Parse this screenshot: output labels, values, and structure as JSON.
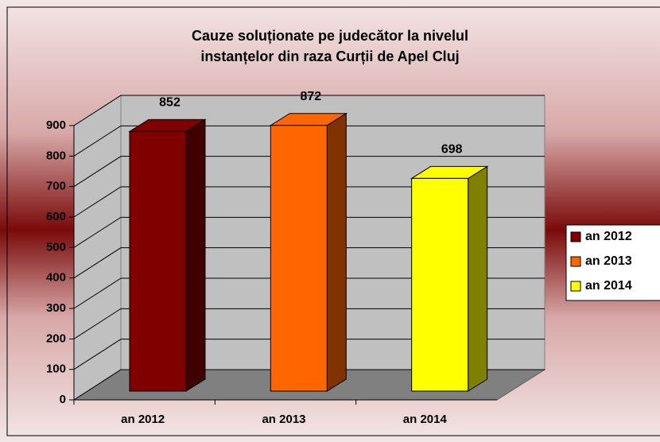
{
  "chart_data": {
    "type": "bar3d",
    "title": [
      "Cauze soluționate pe judecător la nivelul",
      "instanțelor din raza Curții de Apel Cluj"
    ],
    "categories": [
      "an 2012",
      "an 2013",
      "an 2014"
    ],
    "values": [
      852,
      872,
      698
    ],
    "colors": [
      "#800000",
      "#ff6600",
      "#ffff00"
    ],
    "ylim": [
      0,
      900
    ],
    "yticks": [
      0,
      100,
      200,
      300,
      400,
      500,
      600,
      700,
      800,
      900
    ],
    "grid": true,
    "legend": "right"
  }
}
